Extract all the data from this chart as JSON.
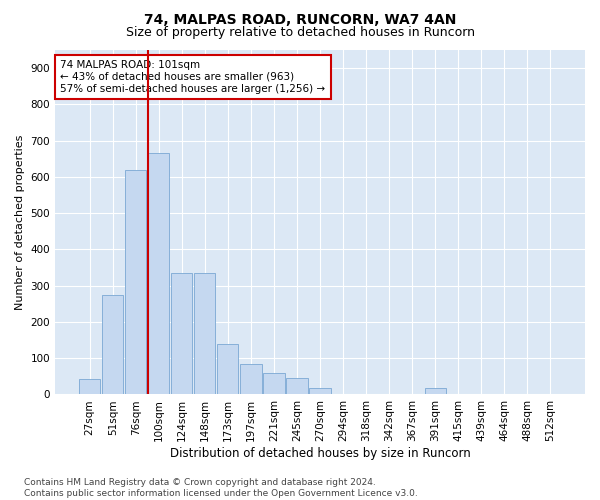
{
  "title": "74, MALPAS ROAD, RUNCORN, WA7 4AN",
  "subtitle": "Size of property relative to detached houses in Runcorn",
  "xlabel": "Distribution of detached houses by size in Runcorn",
  "ylabel": "Number of detached properties",
  "bar_labels": [
    "27sqm",
    "51sqm",
    "76sqm",
    "100sqm",
    "124sqm",
    "148sqm",
    "173sqm",
    "197sqm",
    "221sqm",
    "245sqm",
    "270sqm",
    "294sqm",
    "318sqm",
    "342sqm",
    "367sqm",
    "391sqm",
    "415sqm",
    "439sqm",
    "464sqm",
    "488sqm",
    "512sqm"
  ],
  "bar_values": [
    42,
    275,
    620,
    665,
    335,
    335,
    140,
    85,
    60,
    45,
    18,
    0,
    0,
    0,
    0,
    18,
    0,
    0,
    0,
    0,
    0
  ],
  "bar_color": "#c5d8f0",
  "bar_edgecolor": "#7aa8d4",
  "vline_index": 3,
  "vline_color": "#cc0000",
  "annotation_text": "74 MALPAS ROAD: 101sqm\n← 43% of detached houses are smaller (963)\n57% of semi-detached houses are larger (1,256) →",
  "annotation_box_edgecolor": "#cc0000",
  "annotation_box_facecolor": "#ffffff",
  "ylim": [
    0,
    950
  ],
  "yticks": [
    0,
    100,
    200,
    300,
    400,
    500,
    600,
    700,
    800,
    900
  ],
  "bg_color": "#ffffff",
  "plot_bg_color": "#dce8f5",
  "grid_color": "#ffffff",
  "footer_text": "Contains HM Land Registry data © Crown copyright and database right 2024.\nContains public sector information licensed under the Open Government Licence v3.0.",
  "title_fontsize": 10,
  "subtitle_fontsize": 9,
  "xlabel_fontsize": 8.5,
  "ylabel_fontsize": 8,
  "tick_fontsize": 7.5,
  "footer_fontsize": 6.5
}
